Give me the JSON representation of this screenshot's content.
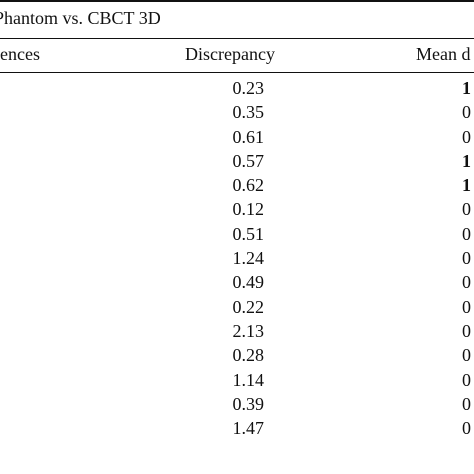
{
  "caption": "Phantom vs. CBCT 3D",
  "headers": {
    "left": "rences",
    "discrepancy": "Discrepancy",
    "mean": "Mean d"
  },
  "rows": [
    {
      "discrepancy": "0.23",
      "mean": "1",
      "mean_bold": true
    },
    {
      "discrepancy": "0.35",
      "mean": "0",
      "mean_bold": false
    },
    {
      "discrepancy": "0.61",
      "mean": "0",
      "mean_bold": false
    },
    {
      "discrepancy": "0.57",
      "mean": "1",
      "mean_bold": true
    },
    {
      "discrepancy": "0.62",
      "mean": "1",
      "mean_bold": true
    },
    {
      "discrepancy": "0.12",
      "mean": "0",
      "mean_bold": false
    },
    {
      "discrepancy": "0.51",
      "mean": "0",
      "mean_bold": false
    },
    {
      "discrepancy": "1.24",
      "mean": "0",
      "mean_bold": false
    },
    {
      "discrepancy": "0.49",
      "mean": "0",
      "mean_bold": false
    },
    {
      "discrepancy": "0.22",
      "mean": "0",
      "mean_bold": false
    },
    {
      "discrepancy": "2.13",
      "mean": "0",
      "mean_bold": false
    },
    {
      "discrepancy": "0.28",
      "mean": "0",
      "mean_bold": false
    },
    {
      "discrepancy": "1.14",
      "mean": "0",
      "mean_bold": false
    },
    {
      "discrepancy": "0.39",
      "mean": "0",
      "mean_bold": false
    },
    {
      "discrepancy": "1.47",
      "mean": "0",
      "mean_bold": false
    }
  ]
}
